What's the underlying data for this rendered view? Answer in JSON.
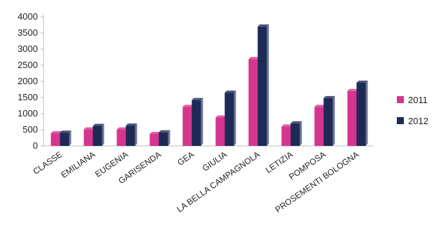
{
  "chart_data": {
    "type": "bar",
    "categories": [
      "CLASSE",
      "EMILIANA",
      "EUGENIA",
      "GARISENDA",
      "GEA",
      "GIULIA",
      "LA BELLA CAMPAGNOLA",
      "LETIZIA",
      "POMPOSA",
      "PROSEMENTI BOLOGNA"
    ],
    "series": [
      {
        "name": "2011",
        "color": "#d6358f",
        "values": [
          390,
          510,
          510,
          370,
          1210,
          880,
          2690,
          600,
          1210,
          1700
        ]
      },
      {
        "name": "2012",
        "color": "#1c2a55",
        "values": [
          410,
          620,
          630,
          420,
          1420,
          1650,
          3700,
          700,
          1480,
          1960
        ]
      }
    ],
    "ylim": [
      0,
      4000
    ],
    "yticks": [
      0,
      500,
      1000,
      1500,
      2000,
      2500,
      3000,
      3500,
      4000
    ],
    "legend_position": "right",
    "grid": false
  }
}
